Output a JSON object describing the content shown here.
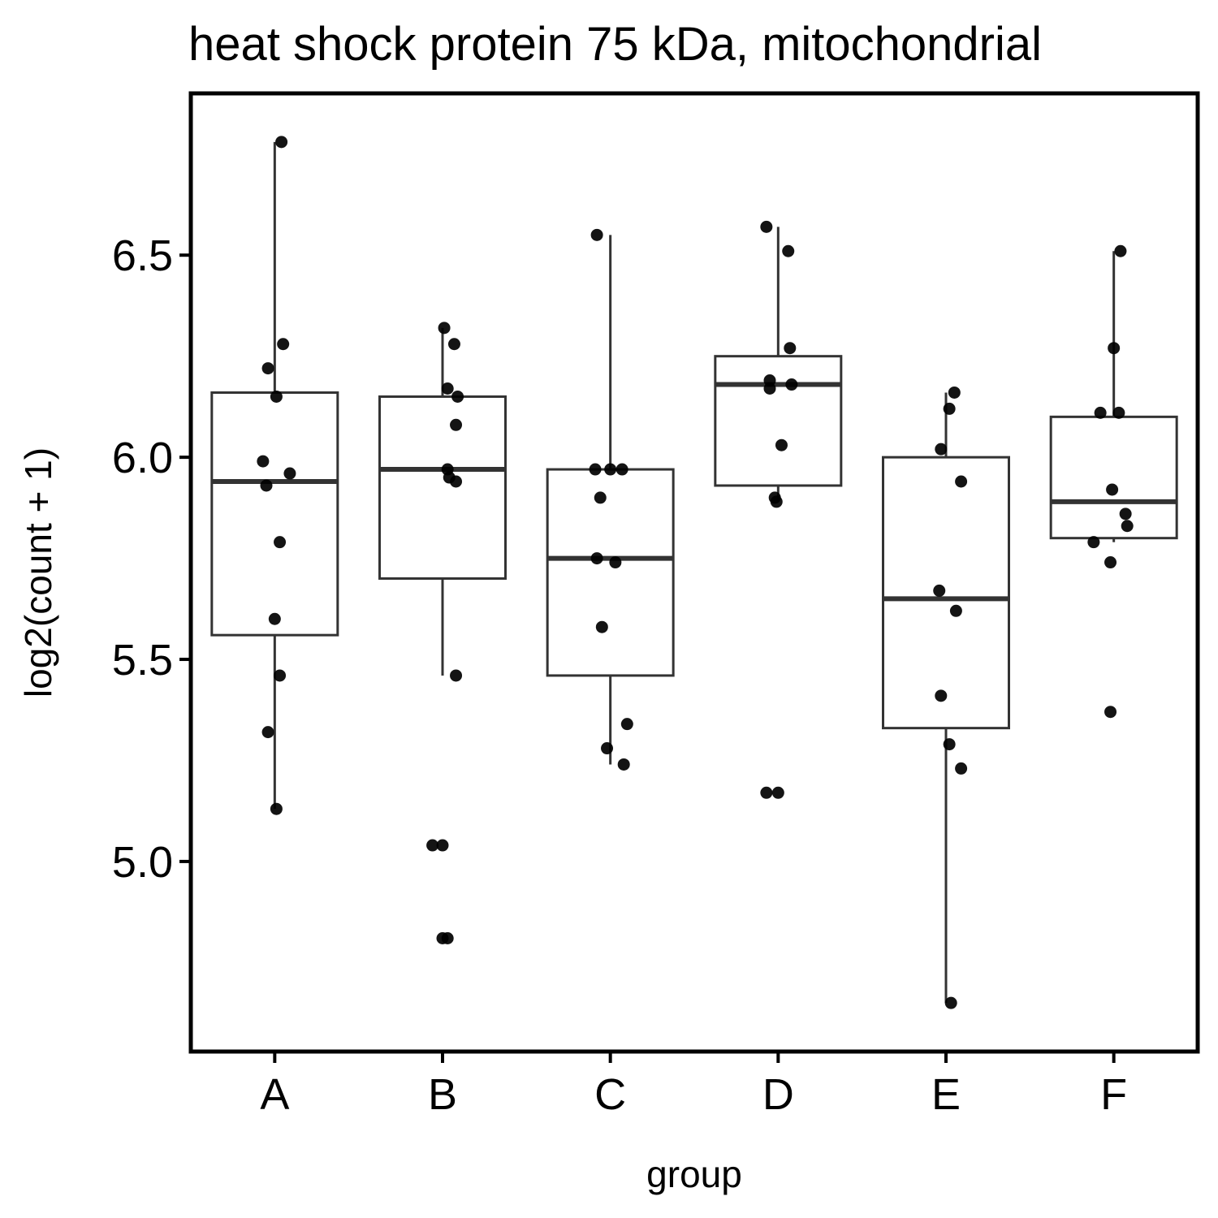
{
  "chart_data": {
    "type": "box",
    "title": "heat shock protein 75 kDa, mitochondrial",
    "xlabel": "group",
    "ylabel": "log2(count + 1)",
    "ylim": [
      4.58,
      6.85
    ],
    "yticks": [
      5.0,
      5.5,
      6.0,
      6.5
    ],
    "ytick_labels": [
      "5.0",
      "5.5",
      "6.0",
      "6.5"
    ],
    "categories": [
      "A",
      "B",
      "C",
      "D",
      "E",
      "F"
    ],
    "boxes": [
      {
        "group": "A",
        "whisker_low": 5.13,
        "q1": 5.56,
        "median": 5.94,
        "q3": 6.16,
        "whisker_high": 6.78
      },
      {
        "group": "B",
        "whisker_low": 5.46,
        "q1": 5.7,
        "median": 5.97,
        "q3": 6.15,
        "whisker_high": 6.32
      },
      {
        "group": "C",
        "whisker_low": 5.24,
        "q1": 5.46,
        "median": 5.75,
        "q3": 5.97,
        "whisker_high": 6.55
      },
      {
        "group": "D",
        "whisker_low": 5.89,
        "q1": 5.93,
        "median": 6.18,
        "q3": 6.25,
        "whisker_high": 6.57
      },
      {
        "group": "E",
        "whisker_low": 4.65,
        "q1": 5.33,
        "median": 5.65,
        "q3": 6.0,
        "whisker_high": 6.16
      },
      {
        "group": "F",
        "whisker_low": 5.79,
        "q1": 5.8,
        "median": 5.89,
        "q3": 6.1,
        "whisker_high": 6.51
      }
    ],
    "points": [
      {
        "group": "A",
        "jitter": 0.04,
        "y": 6.78
      },
      {
        "group": "A",
        "jitter": 0.05,
        "y": 6.28
      },
      {
        "group": "A",
        "jitter": -0.04,
        "y": 6.22
      },
      {
        "group": "A",
        "jitter": 0.01,
        "y": 6.15
      },
      {
        "group": "A",
        "jitter": -0.07,
        "y": 5.99
      },
      {
        "group": "A",
        "jitter": 0.09,
        "y": 5.96
      },
      {
        "group": "A",
        "jitter": -0.05,
        "y": 5.93
      },
      {
        "group": "A",
        "jitter": 0.03,
        "y": 5.79
      },
      {
        "group": "A",
        "jitter": 0.0,
        "y": 5.6
      },
      {
        "group": "A",
        "jitter": 0.03,
        "y": 5.46
      },
      {
        "group": "A",
        "jitter": -0.04,
        "y": 5.32
      },
      {
        "group": "A",
        "jitter": 0.01,
        "y": 5.13
      },
      {
        "group": "B",
        "jitter": 0.01,
        "y": 6.32
      },
      {
        "group": "B",
        "jitter": 0.07,
        "y": 6.28
      },
      {
        "group": "B",
        "jitter": 0.03,
        "y": 6.17
      },
      {
        "group": "B",
        "jitter": 0.09,
        "y": 6.15
      },
      {
        "group": "B",
        "jitter": 0.08,
        "y": 6.08
      },
      {
        "group": "B",
        "jitter": 0.03,
        "y": 5.97
      },
      {
        "group": "B",
        "jitter": 0.04,
        "y": 5.95
      },
      {
        "group": "B",
        "jitter": 0.08,
        "y": 5.94
      },
      {
        "group": "B",
        "jitter": 0.08,
        "y": 5.46
      },
      {
        "group": "B",
        "jitter": -0.06,
        "y": 5.04
      },
      {
        "group": "B",
        "jitter": 0.0,
        "y": 5.04
      },
      {
        "group": "B",
        "jitter": 0.0,
        "y": 4.81
      },
      {
        "group": "B",
        "jitter": 0.03,
        "y": 4.81
      },
      {
        "group": "C",
        "jitter": -0.08,
        "y": 6.55
      },
      {
        "group": "C",
        "jitter": -0.09,
        "y": 5.97
      },
      {
        "group": "C",
        "jitter": 0.0,
        "y": 5.97
      },
      {
        "group": "C",
        "jitter": 0.07,
        "y": 5.97
      },
      {
        "group": "C",
        "jitter": -0.06,
        "y": 5.9
      },
      {
        "group": "C",
        "jitter": -0.08,
        "y": 5.75
      },
      {
        "group": "C",
        "jitter": 0.03,
        "y": 5.74
      },
      {
        "group": "C",
        "jitter": -0.05,
        "y": 5.58
      },
      {
        "group": "C",
        "jitter": 0.1,
        "y": 5.34
      },
      {
        "group": "C",
        "jitter": -0.02,
        "y": 5.28
      },
      {
        "group": "C",
        "jitter": 0.08,
        "y": 5.24
      },
      {
        "group": "D",
        "jitter": -0.07,
        "y": 6.57
      },
      {
        "group": "D",
        "jitter": 0.06,
        "y": 6.51
      },
      {
        "group": "D",
        "jitter": 0.07,
        "y": 6.27
      },
      {
        "group": "D",
        "jitter": -0.05,
        "y": 6.19
      },
      {
        "group": "D",
        "jitter": 0.08,
        "y": 6.18
      },
      {
        "group": "D",
        "jitter": -0.05,
        "y": 6.17
      },
      {
        "group": "D",
        "jitter": 0.02,
        "y": 6.03
      },
      {
        "group": "D",
        "jitter": -0.02,
        "y": 5.9
      },
      {
        "group": "D",
        "jitter": -0.01,
        "y": 5.89
      },
      {
        "group": "D",
        "jitter": -0.07,
        "y": 5.17
      },
      {
        "group": "D",
        "jitter": 0.0,
        "y": 5.17
      },
      {
        "group": "E",
        "jitter": 0.05,
        "y": 6.16
      },
      {
        "group": "E",
        "jitter": 0.02,
        "y": 6.12
      },
      {
        "group": "E",
        "jitter": -0.03,
        "y": 6.02
      },
      {
        "group": "E",
        "jitter": 0.09,
        "y": 5.94
      },
      {
        "group": "E",
        "jitter": -0.04,
        "y": 5.67
      },
      {
        "group": "E",
        "jitter": 0.06,
        "y": 5.62
      },
      {
        "group": "E",
        "jitter": -0.03,
        "y": 5.41
      },
      {
        "group": "E",
        "jitter": 0.02,
        "y": 5.29
      },
      {
        "group": "E",
        "jitter": 0.09,
        "y": 5.23
      },
      {
        "group": "E",
        "jitter": 0.03,
        "y": 4.65
      },
      {
        "group": "F",
        "jitter": 0.04,
        "y": 6.51
      },
      {
        "group": "F",
        "jitter": 0.0,
        "y": 6.27
      },
      {
        "group": "F",
        "jitter": -0.08,
        "y": 6.11
      },
      {
        "group": "F",
        "jitter": 0.03,
        "y": 6.11
      },
      {
        "group": "F",
        "jitter": -0.01,
        "y": 5.92
      },
      {
        "group": "F",
        "jitter": 0.07,
        "y": 5.86
      },
      {
        "group": "F",
        "jitter": 0.08,
        "y": 5.83
      },
      {
        "group": "F",
        "jitter": -0.12,
        "y": 5.79
      },
      {
        "group": "F",
        "jitter": -0.02,
        "y": 5.74
      },
      {
        "group": "F",
        "jitter": -0.02,
        "y": 5.37
      }
    ],
    "colors": {
      "box_stroke": "#333333",
      "point": "#000000",
      "panel_border": "#000000",
      "background": "#ffffff"
    },
    "grid": false,
    "legend": "none"
  }
}
